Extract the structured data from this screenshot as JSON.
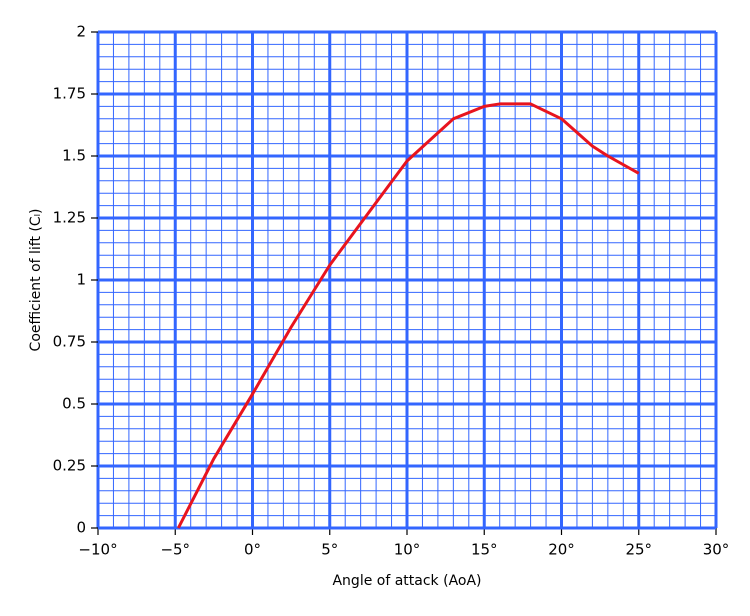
{
  "chart_data": {
    "type": "line",
    "xlabel": "Angle of attack (AoA)",
    "ylabel": "Coefficient of lift (Cₗ)",
    "x": [
      -4.8,
      -2.5,
      0,
      2.5,
      5,
      7.5,
      10,
      13,
      15,
      16,
      18,
      20,
      22,
      23,
      25
    ],
    "series": [
      {
        "name": "Cl",
        "color": "#e8141e",
        "values": [
          0,
          0.28,
          0.54,
          0.81,
          1.06,
          1.27,
          1.48,
          1.65,
          1.7,
          1.71,
          1.71,
          1.65,
          1.54,
          1.5,
          1.43
        ]
      }
    ],
    "xlim": [
      -10,
      30
    ],
    "ylim": [
      0,
      2
    ],
    "xticks": [
      {
        "value": -10,
        "label": "−10°"
      },
      {
        "value": -5,
        "label": "−5°"
      },
      {
        "value": 0,
        "label": "0°"
      },
      {
        "value": 5,
        "label": "5°"
      },
      {
        "value": 10,
        "label": "10°"
      },
      {
        "value": 15,
        "label": "15°"
      },
      {
        "value": 20,
        "label": "20°"
      },
      {
        "value": 25,
        "label": "25°"
      },
      {
        "value": 30,
        "label": "30°"
      }
    ],
    "yticks": [
      0,
      0.25,
      0.5,
      0.75,
      1,
      1.25,
      1.5,
      1.75,
      2
    ],
    "grid": true,
    "grid_color": "#3366ff"
  }
}
